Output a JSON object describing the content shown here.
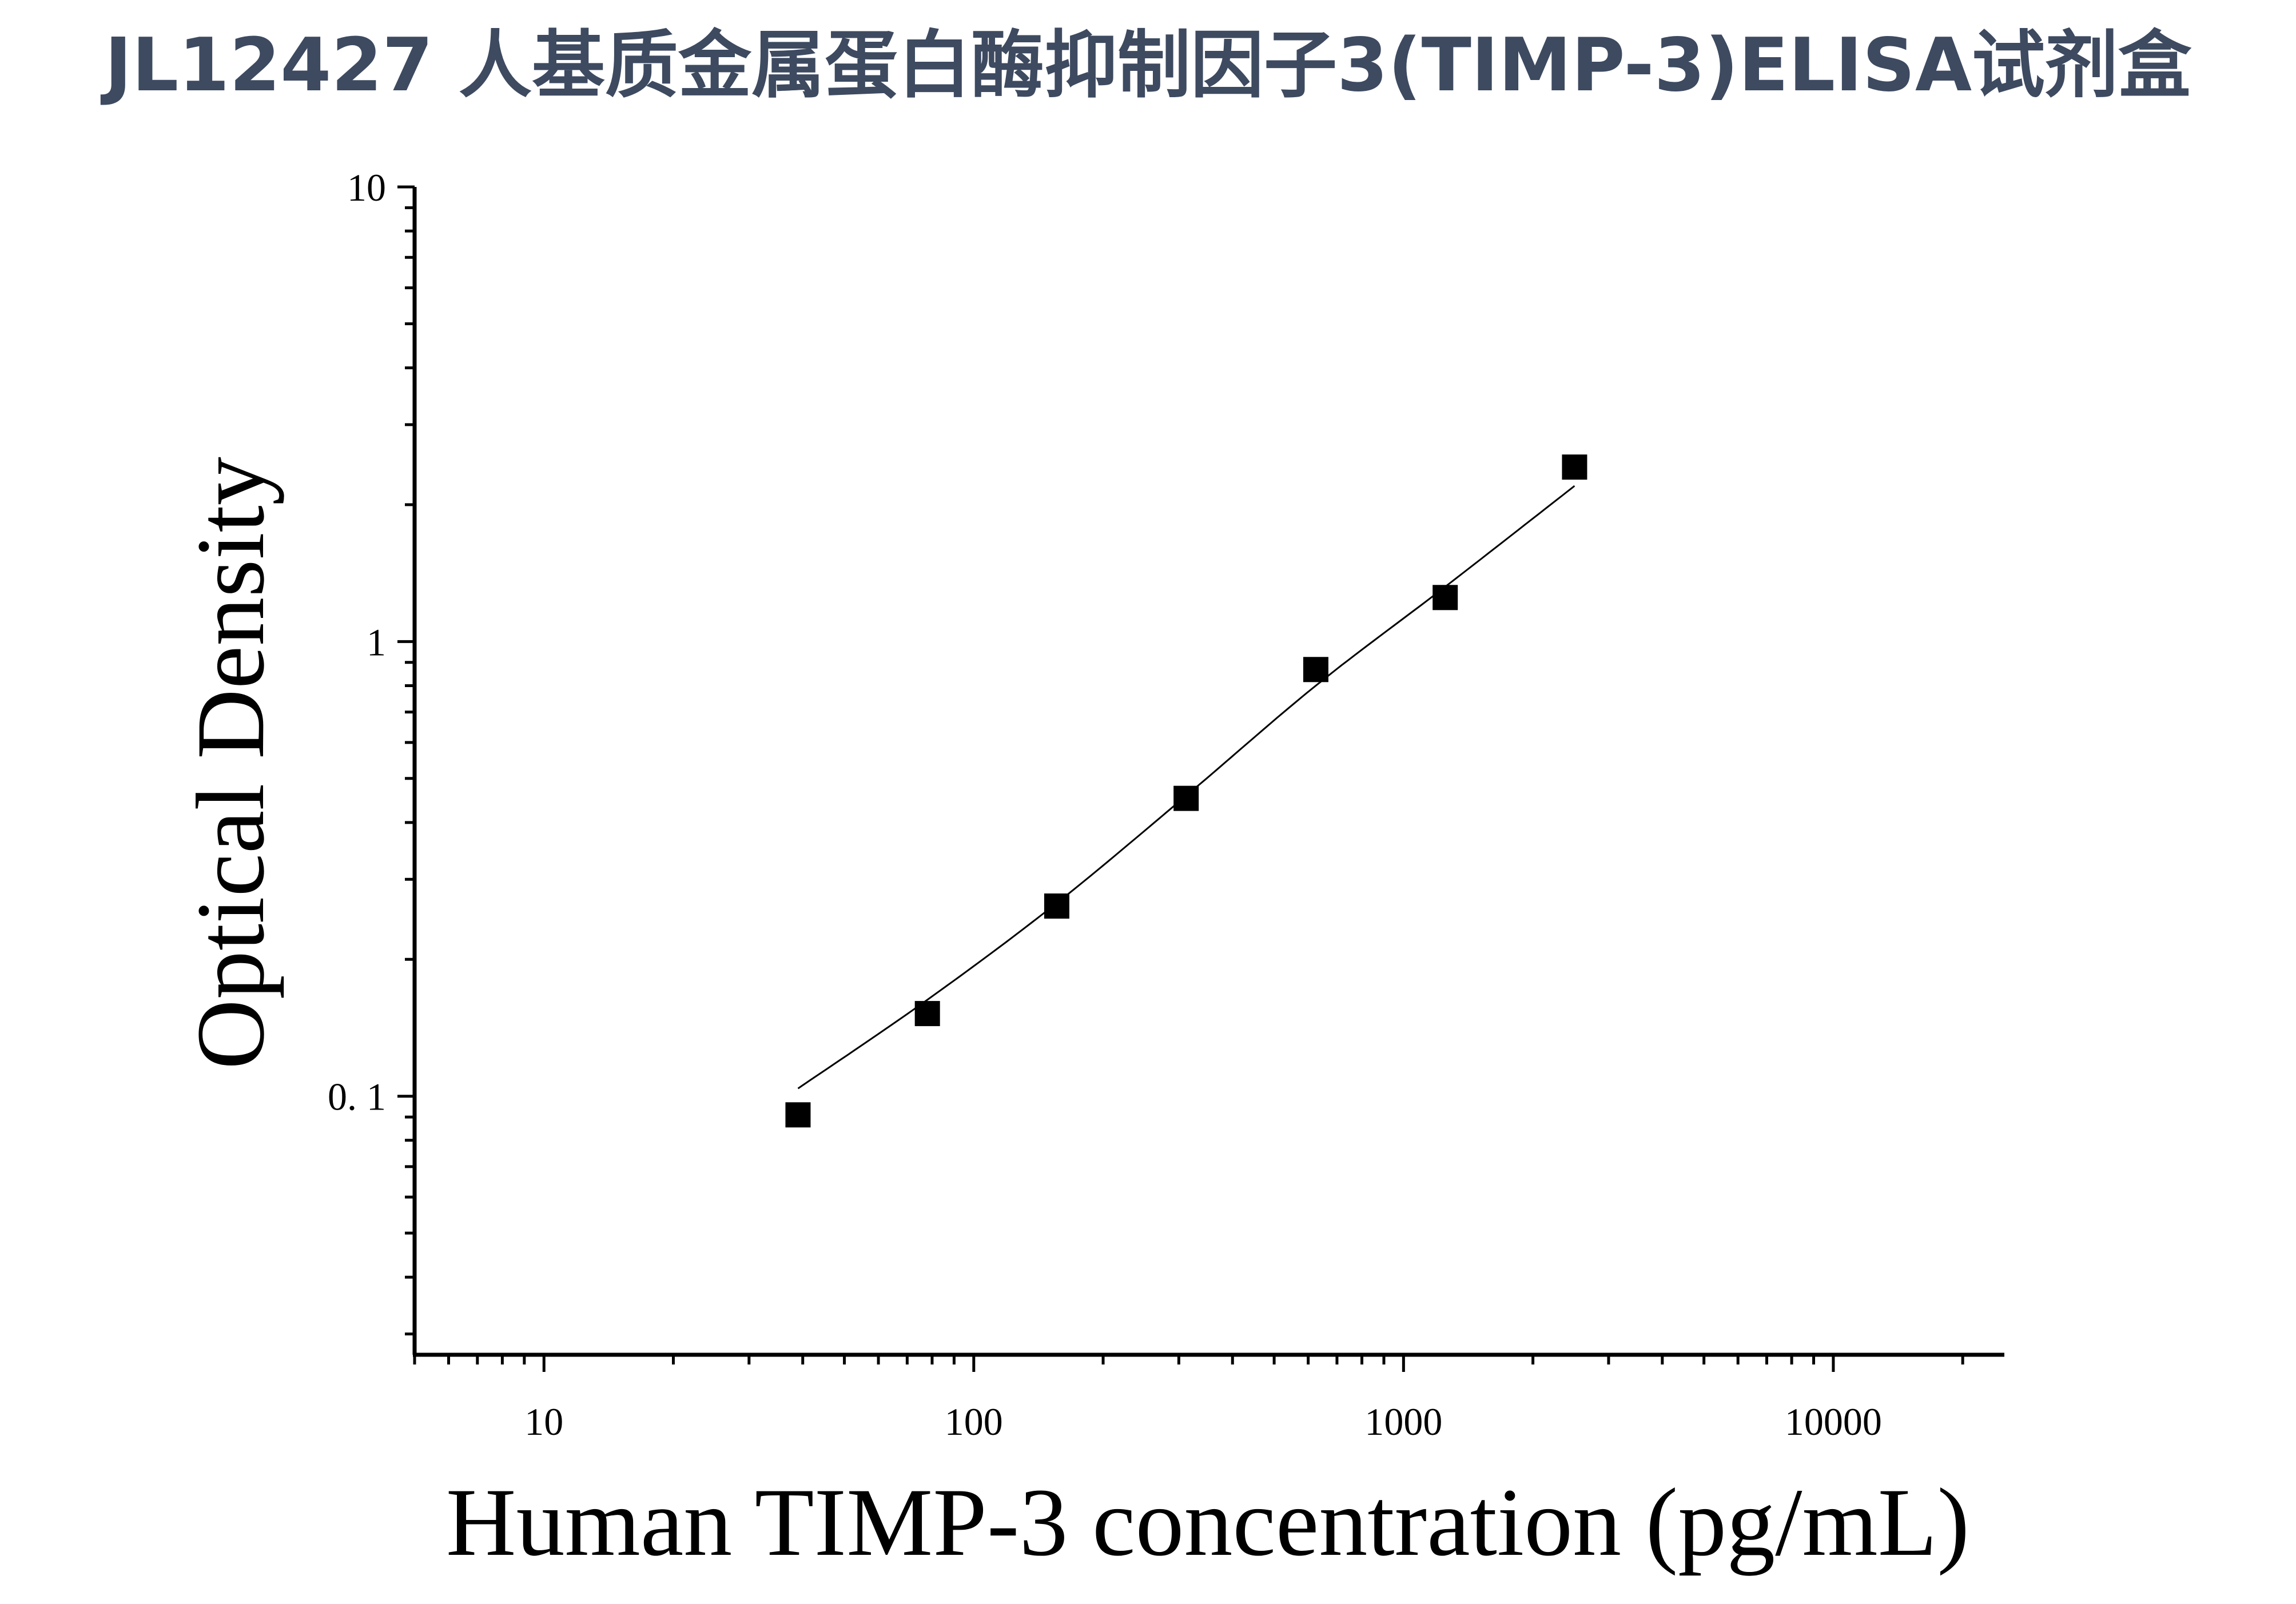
{
  "header": {
    "title": "JL12427 人基质金属蛋白酶抑制因子3(TIMP-3)ELISA试剂盒"
  },
  "chart_data": {
    "type": "scatter",
    "title": "",
    "xlabel": "Human TIMP-3 concentration (pg/mL)",
    "ylabel": "Optical Density",
    "xscale": "log",
    "yscale": "log",
    "xlim": [
      5,
      25000
    ],
    "ylim": [
      0.027,
      10
    ],
    "x_ticks": [
      10,
      100,
      1000,
      10000
    ],
    "x_tick_labels": [
      "10",
      "100",
      "1000",
      "10000"
    ],
    "y_ticks": [
      0.1,
      1,
      10
    ],
    "y_tick_labels": [
      "0. 1",
      "1",
      "10"
    ],
    "grid": false,
    "legend": "none",
    "series": [
      {
        "marker": "square",
        "color": "#000000",
        "x": [
          39,
          78,
          156,
          312,
          625,
          1250,
          2500
        ],
        "y": [
          0.091,
          0.152,
          0.262,
          0.452,
          0.868,
          1.25,
          2.42
        ]
      }
    ],
    "fit_curve": {
      "color": "#000000",
      "x": [
        39,
        78,
        156,
        312,
        625,
        1250,
        2500
      ],
      "y": [
        0.104,
        0.163,
        0.266,
        0.458,
        0.8,
        1.32,
        2.2
      ]
    }
  }
}
